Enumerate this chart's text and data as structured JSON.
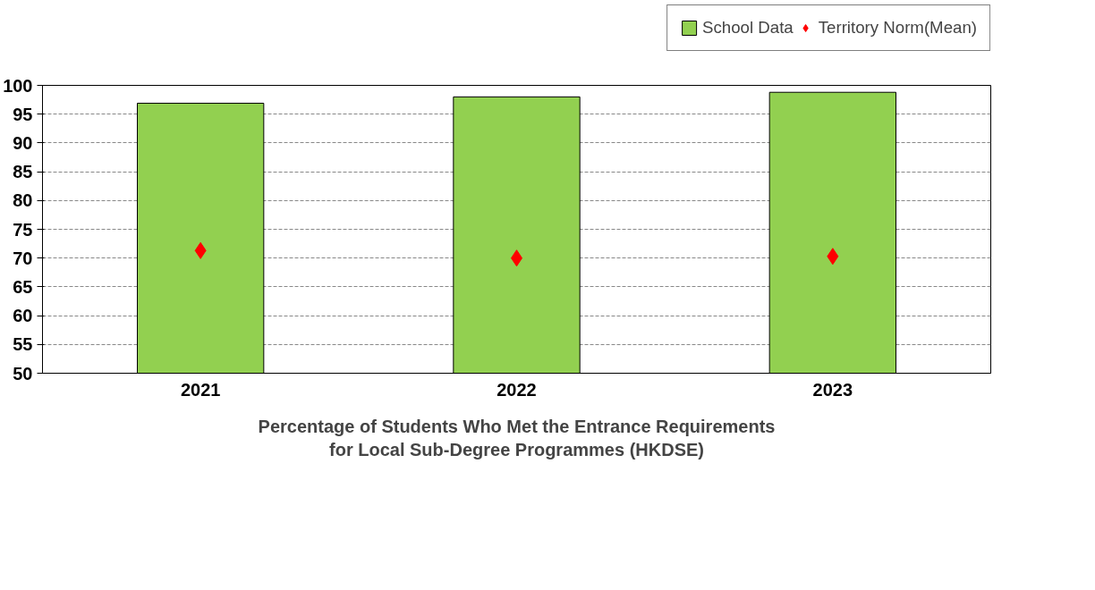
{
  "chart_data": {
    "type": "bar",
    "xlabel": "Percentage of Students Who Met the Entrance Requirements\nfor Local Sub-Degree Programmes (HKDSE)",
    "categories": [
      "2021",
      "2022",
      "2023"
    ],
    "series": [
      {
        "name": "School Data",
        "color": "#92d050",
        "values": [
          96.9,
          98.0,
          98.8
        ]
      },
      {
        "name": "Territory Norm(Mean)",
        "type": "scatter",
        "marker": "diamond",
        "color": "#ff0000",
        "values": [
          71.3,
          70.0,
          70.3
        ]
      }
    ],
    "ylim": [
      50,
      100
    ],
    "yticks": [
      50,
      55,
      60,
      65,
      70,
      75,
      80,
      85,
      90,
      95,
      100
    ],
    "grid": "y",
    "legend": "top right"
  }
}
